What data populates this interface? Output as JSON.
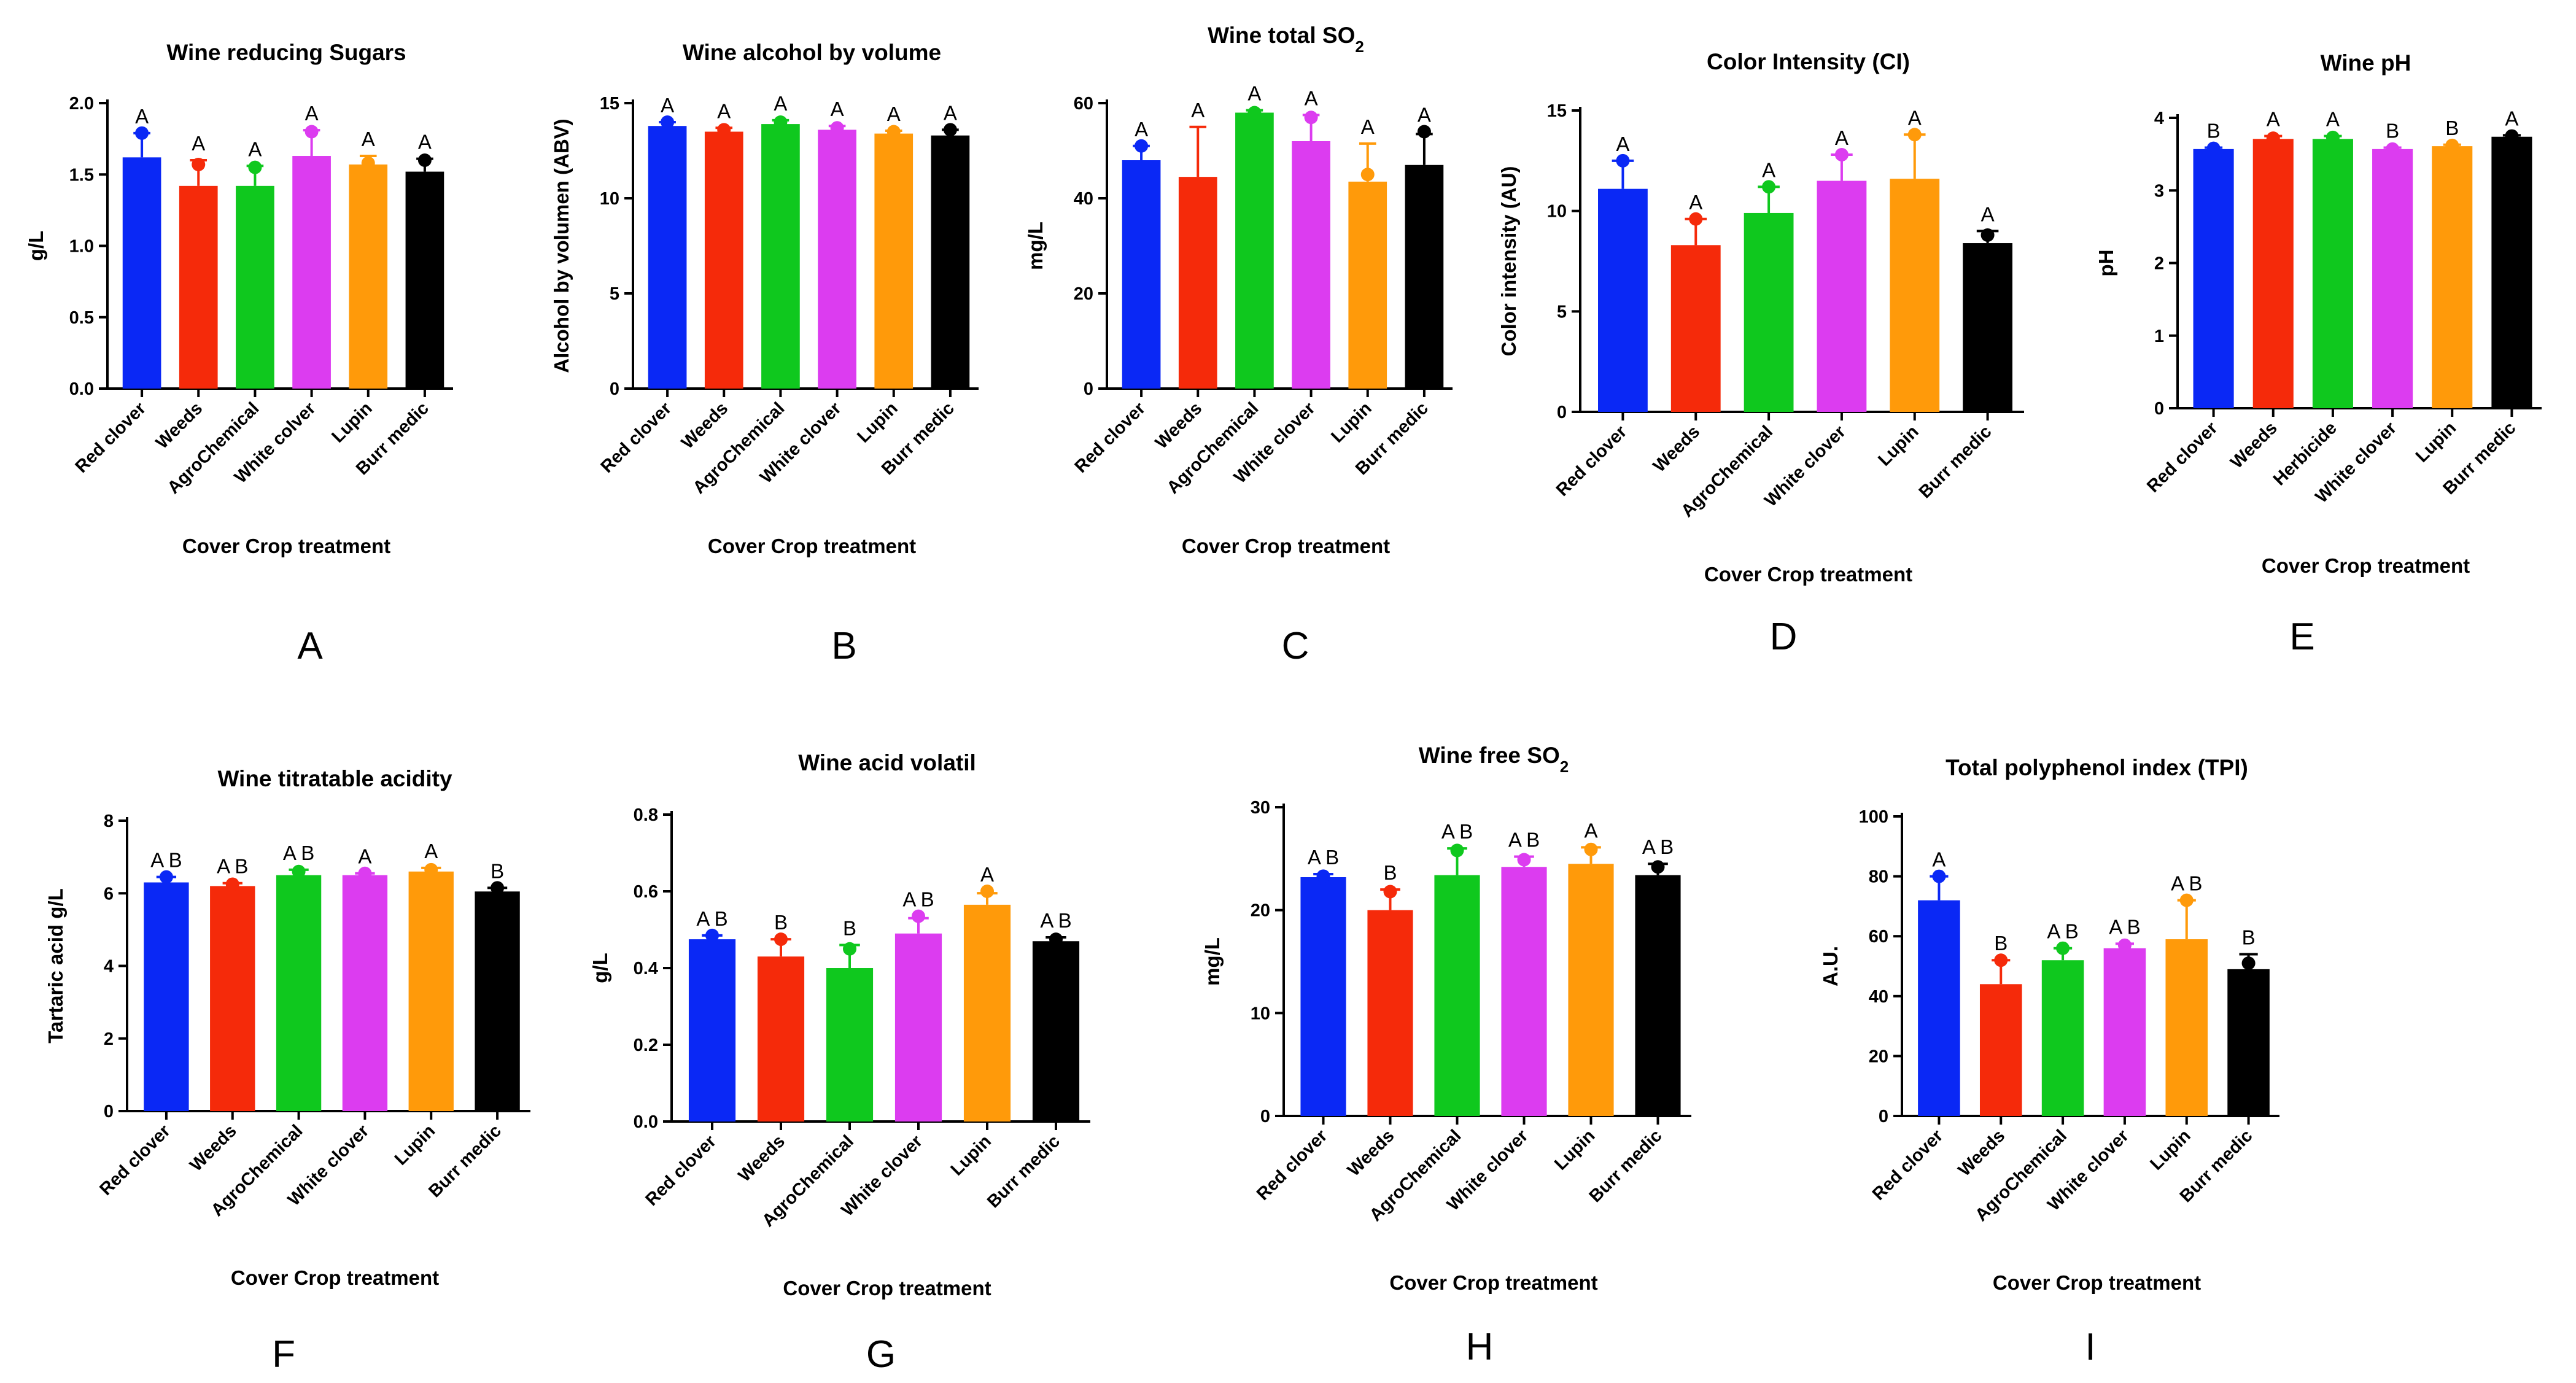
{
  "colors": [
    "#0a28f5",
    "#f52a0a",
    "#0fc81e",
    "#dc3cf0",
    "#ff9a0a",
    "#000000"
  ],
  "chart_data": [
    {
      "panel": "A",
      "type": "bar",
      "title": "Wine reducing Sugars",
      "ylabel": "g/L",
      "xlabel": "Cover Crop treatment",
      "categories": [
        "Red clover",
        "Weeds",
        "AgroChemical",
        "White colver",
        "Lupin",
        "Burr medic"
      ],
      "values": [
        1.62,
        1.42,
        1.42,
        1.63,
        1.57,
        1.52
      ],
      "errors": [
        0.17,
        0.18,
        0.14,
        0.18,
        0.06,
        0.09
      ],
      "points": [
        1.79,
        1.57,
        1.55,
        1.8,
        1.58,
        1.6
      ],
      "significance": [
        "A",
        "A",
        "A",
        "A",
        "A",
        "A"
      ],
      "ylim": [
        0,
        2.0
      ],
      "yticks": [
        0,
        0.5,
        1.0,
        1.5,
        2.0
      ],
      "ytick_labels": [
        "0.0",
        "0.5",
        "1.0",
        "1.5",
        "2.0"
      ]
    },
    {
      "panel": "B",
      "type": "bar",
      "title": "Wine alcohol by volume",
      "ylabel": "Alcohol by volumen (ABV)",
      "xlabel": "Cover Crop treatment",
      "categories": [
        "Red clover",
        "Weeds",
        "AgroChemical",
        "White clover",
        "Lupin",
        "Burr medic"
      ],
      "values": [
        13.8,
        13.5,
        13.9,
        13.6,
        13.4,
        13.3
      ],
      "errors": [
        0.2,
        0.2,
        0.2,
        0.2,
        0.15,
        0.3
      ],
      "points": [
        14.0,
        13.6,
        14.0,
        13.7,
        13.5,
        13.6
      ],
      "significance": [
        "A",
        "A",
        "A",
        "A",
        "A",
        "A"
      ],
      "ylim": [
        0,
        15
      ],
      "yticks": [
        0,
        5,
        10,
        15
      ],
      "ytick_labels": [
        "0",
        "5",
        "10",
        "15"
      ]
    },
    {
      "panel": "C",
      "type": "bar",
      "title": "Wine total SO",
      "title_sub": "2",
      "ylabel": "mg/L",
      "xlabel": "Cover Crop treatment",
      "categories": [
        "Red clover",
        "Weeds",
        "AgroChemical",
        "White clover",
        "Lupin",
        "Burr medic"
      ],
      "values": [
        48,
        44.5,
        58,
        52,
        43.5,
        47
      ],
      "errors": [
        3,
        10.5,
        0.5,
        5.5,
        8,
        6.5
      ],
      "points": [
        51,
        42,
        58,
        57,
        45,
        54
      ],
      "significance": [
        "A",
        "A",
        "A",
        "A",
        "A",
        "A"
      ],
      "ylim": [
        0,
        60
      ],
      "yticks": [
        0,
        20,
        40,
        60
      ],
      "ytick_labels": [
        "0",
        "20",
        "40",
        "60"
      ]
    },
    {
      "panel": "D",
      "type": "bar",
      "title": "Color Intensity (CI)",
      "ylabel": "Color intensity (AU)",
      "xlabel": "Cover Crop treatment",
      "categories": [
        "Red clover",
        "Weeds",
        "AgroChemical",
        "White clover",
        "Lupin",
        "Burr medic"
      ],
      "values": [
        11.1,
        8.3,
        9.9,
        11.5,
        11.6,
        8.4
      ],
      "errors": [
        1.4,
        1.3,
        1.3,
        1.3,
        2.2,
        0.6
      ],
      "points": [
        12.5,
        9.6,
        11.2,
        12.8,
        13.8,
        8.8
      ],
      "significance": [
        "A",
        "A",
        "A",
        "A",
        "A",
        "A"
      ],
      "ylim": [
        0,
        15
      ],
      "yticks": [
        0,
        5,
        10,
        15
      ],
      "ytick_labels": [
        "0",
        "5",
        "10",
        "15"
      ]
    },
    {
      "panel": "E",
      "type": "bar",
      "title": "Wine pH",
      "ylabel": "pH",
      "xlabel": "Cover Crop treatment",
      "categories": [
        "Red clover",
        "Weeds",
        "Herbicide",
        "White clover",
        "Lupin",
        "Burr medic"
      ],
      "values": [
        3.57,
        3.71,
        3.71,
        3.57,
        3.61,
        3.74
      ],
      "errors": [
        0.02,
        0.04,
        0.04,
        0.02,
        0.02,
        0.02
      ],
      "points": [
        3.58,
        3.72,
        3.73,
        3.57,
        3.62,
        3.75
      ],
      "significance": [
        "B",
        "A",
        "A",
        "B",
        "B",
        "A"
      ],
      "ylim": [
        0,
        4
      ],
      "yticks": [
        0,
        1,
        2,
        3,
        4
      ],
      "ytick_labels": [
        "0",
        "1",
        "2",
        "3",
        "4"
      ]
    },
    {
      "panel": "F",
      "type": "bar",
      "title": "Wine titratable acidity",
      "ylabel": "Tartaric acid  g/L",
      "xlabel": "Cover Crop treatment",
      "categories": [
        "Red clover",
        "Weeds",
        "AgroChemical",
        "White clover",
        "Lupin",
        "Burr medic"
      ],
      "values": [
        6.3,
        6.2,
        6.5,
        6.5,
        6.6,
        6.05
      ],
      "errors": [
        0.15,
        0.08,
        0.15,
        0.05,
        0.1,
        0.1
      ],
      "points": [
        6.45,
        6.25,
        6.6,
        6.55,
        6.65,
        6.15
      ],
      "significance": [
        "A B",
        "A B",
        "A B",
        "A",
        "A",
        "B"
      ],
      "ylim": [
        0,
        8
      ],
      "yticks": [
        0,
        2,
        4,
        6,
        8
      ],
      "ytick_labels": [
        "0",
        "2",
        "4",
        "6",
        "8"
      ]
    },
    {
      "panel": "G",
      "type": "bar",
      "title": "Wine acid volatil",
      "ylabel": "g/L",
      "xlabel": "Cover Crop treatment",
      "categories": [
        "Red clover",
        "Weeds",
        "AgroChemical",
        "White clover",
        "Lupin",
        "Burr medic"
      ],
      "values": [
        0.475,
        0.43,
        0.4,
        0.49,
        0.565,
        0.47
      ],
      "errors": [
        0.01,
        0.045,
        0.06,
        0.04,
        0.03,
        0.01
      ],
      "points": [
        0.485,
        0.475,
        0.45,
        0.535,
        0.6,
        0.475
      ],
      "significance": [
        "A B",
        "B",
        "B",
        "A B",
        "A",
        "A B"
      ],
      "ylim": [
        0,
        0.8
      ],
      "yticks": [
        0,
        0.2,
        0.4,
        0.6,
        0.8
      ],
      "ytick_labels": [
        "0.0",
        "0.2",
        "0.4",
        "0.6",
        "0.8"
      ]
    },
    {
      "panel": "H",
      "type": "bar",
      "title": "Wine free SO",
      "title_sub": "2",
      "ylabel": "mg/L",
      "xlabel": "Cover Crop treatment",
      "categories": [
        "Red clover",
        "Weeds",
        "AgroChemical",
        "White clover",
        "Lupin",
        "Burr medic"
      ],
      "values": [
        23.2,
        20,
        23.4,
        24.2,
        24.5,
        23.4
      ],
      "errors": [
        0.3,
        2,
        2.6,
        1,
        1.6,
        1.1
      ],
      "points": [
        23.3,
        21.8,
        25.8,
        24.9,
        25.9,
        24.2
      ],
      "significance": [
        "A B",
        "B",
        "A B",
        "A B",
        "A",
        "A B"
      ],
      "ylim": [
        0,
        30
      ],
      "yticks": [
        0,
        10,
        20,
        30
      ],
      "ytick_labels": [
        "0",
        "10",
        "20",
        "30"
      ]
    },
    {
      "panel": "I",
      "type": "bar",
      "title": "Total polyphenol index (TPI)",
      "ylabel": "A.U.",
      "xlabel": "Cover Crop treatment",
      "categories": [
        "Red clover",
        "Weeds",
        "AgroChemical",
        "White clover",
        "Lupin",
        "Burr medic"
      ],
      "values": [
        72,
        44,
        52,
        56,
        59,
        49
      ],
      "errors": [
        8,
        8,
        4,
        1.5,
        13,
        5
      ],
      "points": [
        80,
        52,
        56,
        57,
        72,
        51
      ],
      "significance": [
        "A",
        "B",
        "A B",
        "A B",
        "A B",
        "B"
      ],
      "ylim": [
        0,
        100
      ],
      "yticks": [
        0,
        20,
        40,
        60,
        80,
        100
      ],
      "ytick_labels": [
        "0",
        "20",
        "40",
        "60",
        "80",
        "100"
      ]
    }
  ]
}
